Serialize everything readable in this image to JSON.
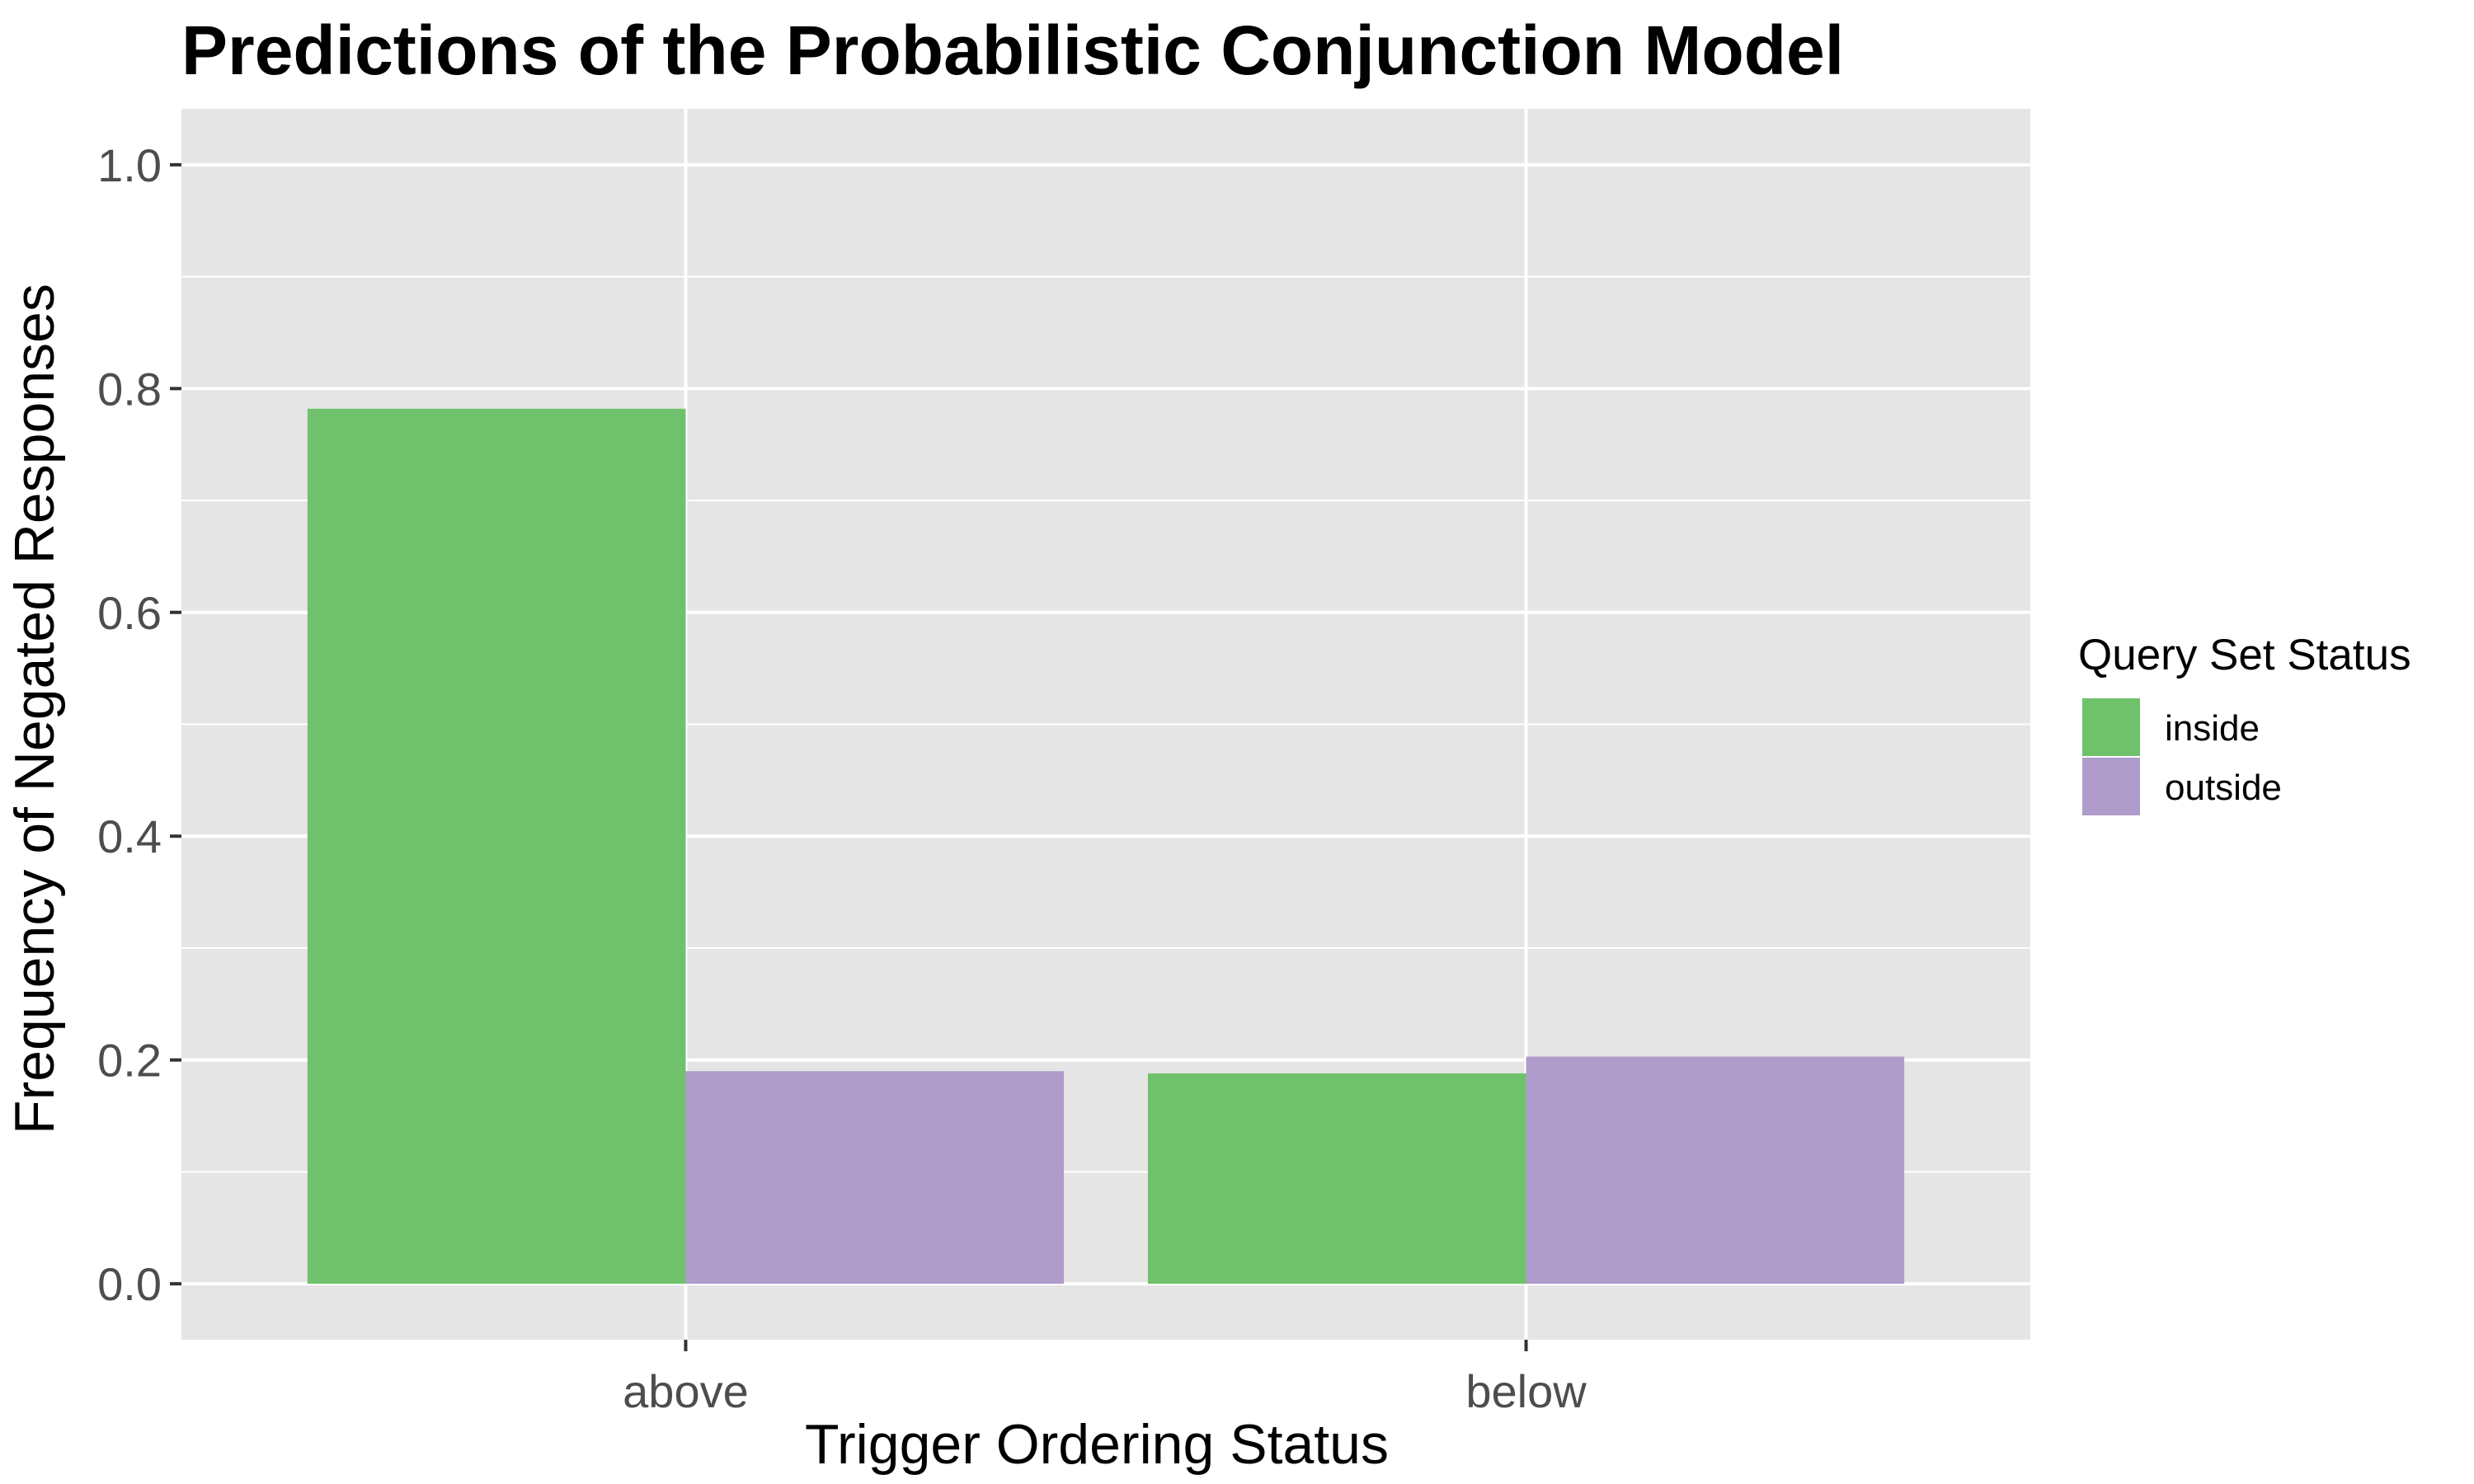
{
  "chart_data": {
    "type": "bar",
    "title": "Predictions of the Probabilistic Conjunction Model",
    "xlabel": "Trigger Ordering Status",
    "ylabel": "Frequency of Negated Responses",
    "categories": [
      "above",
      "below"
    ],
    "series": [
      {
        "name": "inside",
        "values": [
          0.782,
          0.188
        ],
        "color": "#6fc26b"
      },
      {
        "name": "outside",
        "values": [
          0.19,
          0.203
        ],
        "color": "#af9ccb"
      }
    ],
    "ylim": [
      -0.05,
      1.05
    ],
    "yticks": [
      0.0,
      0.2,
      0.4,
      0.6,
      0.8,
      1.0
    ],
    "ytick_labels": [
      "0.0",
      "0.2",
      "0.4",
      "0.6",
      "0.8",
      "1.0"
    ],
    "grid": true,
    "legend": {
      "title": "Query Set Status",
      "position": "right"
    },
    "panel_background": "#e5e5e5",
    "grid_color": "#ffffff"
  }
}
